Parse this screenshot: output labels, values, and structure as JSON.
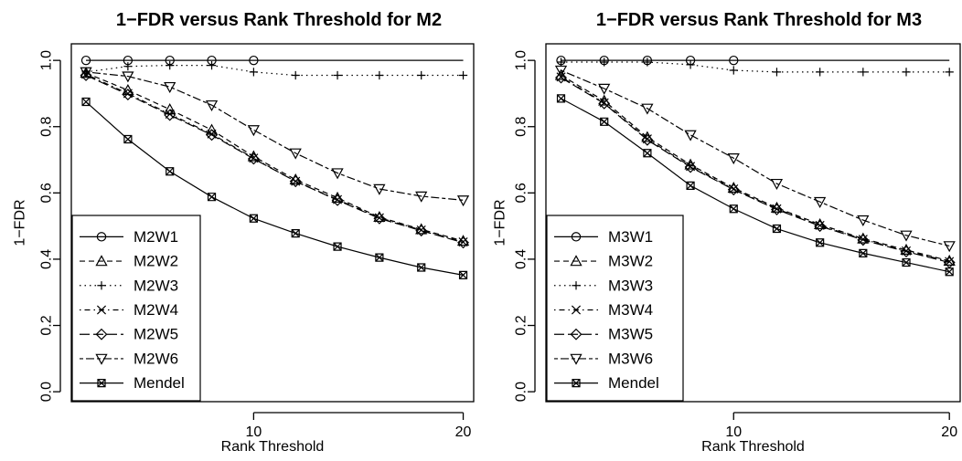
{
  "chart_data": [
    {
      "type": "line",
      "title": "1−FDR versus Rank Threshold for M2",
      "xlabel": "Rank Threshold",
      "ylabel": "1−FDR",
      "xlim": [
        1.3,
        20.5
      ],
      "ylim": [
        -0.03,
        1.05
      ],
      "xticks": [
        10,
        20
      ],
      "yticks": [
        0.0,
        0.2,
        0.4,
        0.6,
        0.8,
        1.0
      ],
      "legend_position": "bottom-left",
      "x": [
        2,
        4,
        6,
        8,
        10,
        12,
        14,
        16,
        18,
        20
      ],
      "series": [
        {
          "name": "M2W1",
          "marker": "circle",
          "dash": "solid",
          "values": [
            1.0,
            1.0,
            1.0,
            1.0,
            1.0,
            1.0,
            1.0,
            1.0,
            1.0,
            1.0
          ],
          "marker_count": 5
        },
        {
          "name": "M2W2",
          "marker": "triangle-up",
          "dash": "dashed",
          "values": [
            0.962,
            0.91,
            0.852,
            0.79,
            0.71,
            0.64,
            0.585,
            0.527,
            0.49,
            0.455
          ]
        },
        {
          "name": "M2W3",
          "marker": "plus",
          "dash": "dotted",
          "values": [
            0.965,
            0.982,
            0.985,
            0.985,
            0.965,
            0.955,
            0.955,
            0.955,
            0.955,
            0.955
          ]
        },
        {
          "name": "M2W4",
          "marker": "cross",
          "dash": "dotdash",
          "values": [
            0.958,
            0.9,
            0.838,
            0.778,
            0.705,
            0.635,
            0.58,
            0.525,
            0.488,
            0.452
          ]
        },
        {
          "name": "M2W5",
          "marker": "diamond",
          "dash": "longdash",
          "values": [
            0.955,
            0.897,
            0.835,
            0.775,
            0.703,
            0.635,
            0.578,
            0.523,
            0.486,
            0.45
          ]
        },
        {
          "name": "M2W6",
          "marker": "triangle-down",
          "dash": "twodash",
          "values": [
            0.965,
            0.952,
            0.92,
            0.865,
            0.79,
            0.72,
            0.66,
            0.612,
            0.59,
            0.578
          ]
        },
        {
          "name": "Mendel",
          "marker": "square-x",
          "dash": "solid",
          "values": [
            0.875,
            0.762,
            0.665,
            0.588,
            0.523,
            0.478,
            0.438,
            0.405,
            0.375,
            0.352
          ]
        }
      ]
    },
    {
      "type": "line",
      "title": "1−FDR versus Rank Threshold for M3",
      "xlabel": "Rank Threshold",
      "ylabel": "1−FDR",
      "xlim": [
        1.3,
        20.5
      ],
      "ylim": [
        -0.03,
        1.05
      ],
      "xticks": [
        10,
        20
      ],
      "yticks": [
        0.0,
        0.2,
        0.4,
        0.6,
        0.8,
        1.0
      ],
      "legend_position": "bottom-left",
      "x": [
        2,
        4,
        6,
        8,
        10,
        12,
        14,
        16,
        18,
        20
      ],
      "series": [
        {
          "name": "M3W1",
          "marker": "circle",
          "dash": "solid",
          "values": [
            1.0,
            1.0,
            1.0,
            1.0,
            1.0,
            1.0,
            1.0,
            1.0,
            1.0,
            1.0
          ],
          "marker_count": 5
        },
        {
          "name": "M3W2",
          "marker": "triangle-up",
          "dash": "dashed",
          "values": [
            0.955,
            0.878,
            0.768,
            0.685,
            0.615,
            0.555,
            0.505,
            0.462,
            0.428,
            0.395
          ]
        },
        {
          "name": "M3W3",
          "marker": "plus",
          "dash": "dotted",
          "values": [
            0.995,
            0.995,
            0.995,
            0.987,
            0.97,
            0.965,
            0.965,
            0.965,
            0.965,
            0.965
          ]
        },
        {
          "name": "M3W4",
          "marker": "cross",
          "dash": "dotdash",
          "values": [
            0.95,
            0.872,
            0.763,
            0.68,
            0.612,
            0.552,
            0.502,
            0.46,
            0.425,
            0.393
          ]
        },
        {
          "name": "M3W5",
          "marker": "diamond",
          "dash": "longdash",
          "values": [
            0.948,
            0.87,
            0.76,
            0.678,
            0.61,
            0.55,
            0.5,
            0.458,
            0.423,
            0.39
          ]
        },
        {
          "name": "M3W6",
          "marker": "triangle-down",
          "dash": "twodash",
          "values": [
            0.97,
            0.915,
            0.855,
            0.775,
            0.705,
            0.628,
            0.573,
            0.518,
            0.472,
            0.44
          ]
        },
        {
          "name": "Mendel",
          "marker": "square-x",
          "dash": "solid",
          "values": [
            0.885,
            0.815,
            0.72,
            0.622,
            0.552,
            0.492,
            0.45,
            0.418,
            0.39,
            0.362
          ]
        }
      ]
    }
  ]
}
